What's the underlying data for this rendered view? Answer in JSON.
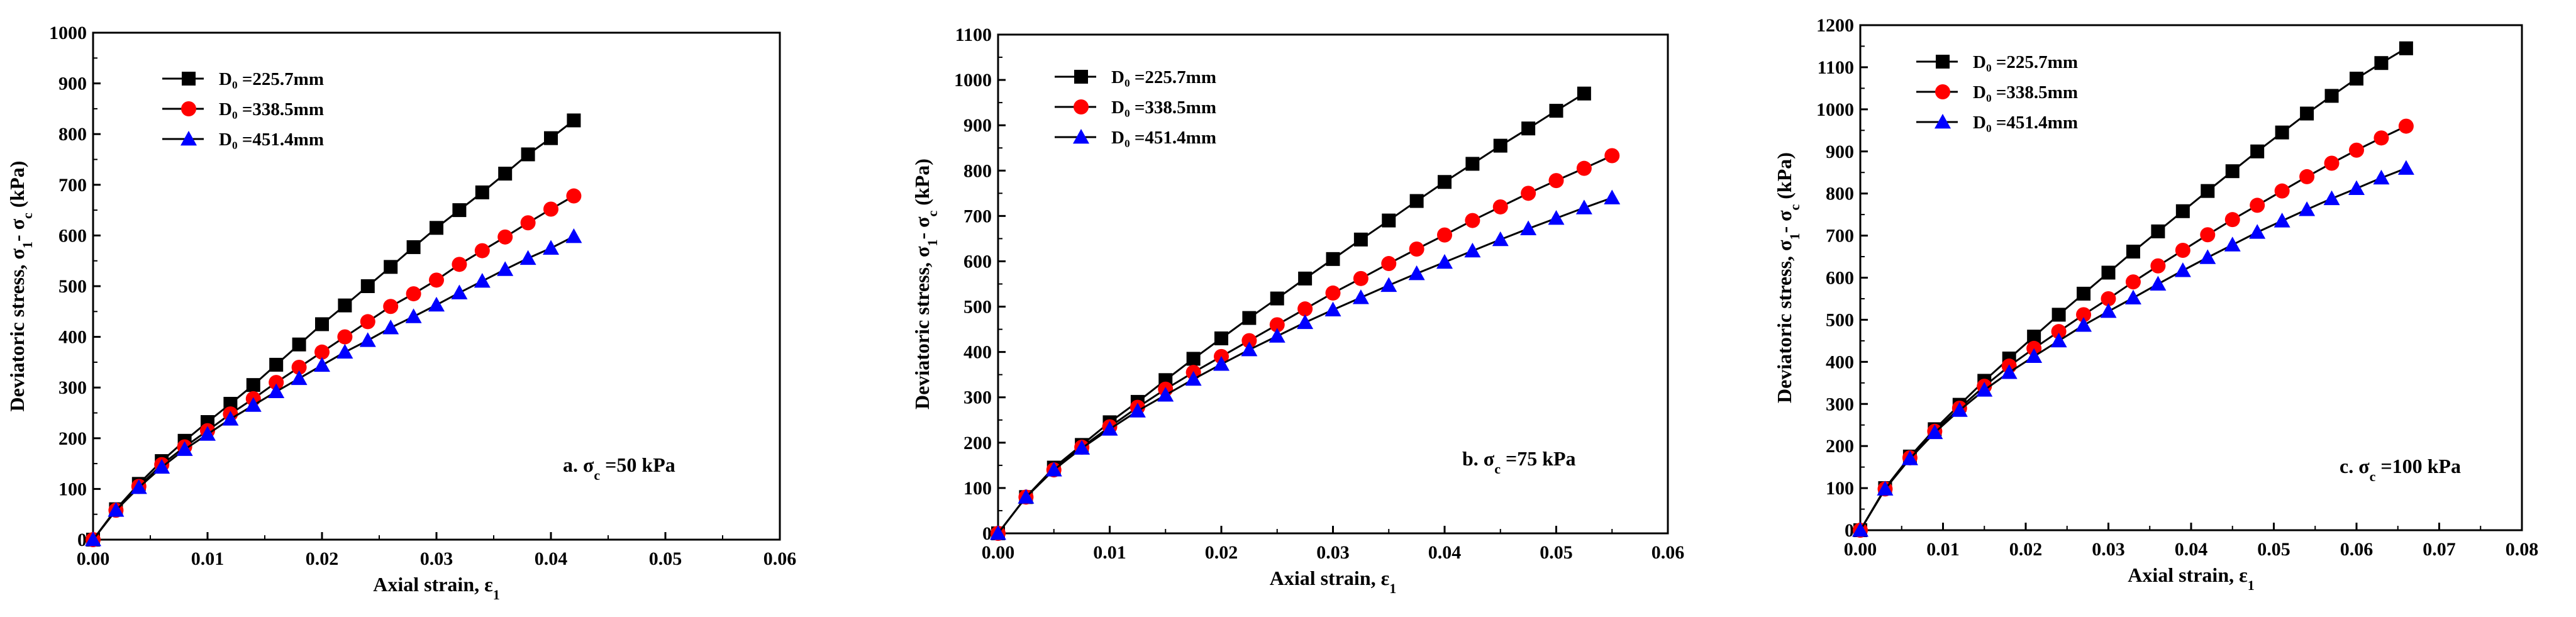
{
  "chart_data": [
    {
      "type": "line",
      "annotation": "a. σ",
      "annotation_sub": "c",
      "annotation_tail": " =50 kPa",
      "xlabel": "Axial strain, ε",
      "xlabel_sub": "1",
      "ylabel": "Deviatoric stress, σ",
      "ylabel_sub1": "1",
      "ylabel_mid": "- σ",
      "ylabel_sub2": "c",
      "ylabel_tail": " (kPa)",
      "xlim": [
        0,
        0.06
      ],
      "ylim": [
        0,
        1000
      ],
      "xticks": [
        "0.00",
        "0.01",
        "0.02",
        "0.03",
        "0.04",
        "0.05",
        "0.06"
      ],
      "yticks": [
        "0",
        "100",
        "200",
        "300",
        "400",
        "500",
        "600",
        "700",
        "800",
        "900",
        "1000"
      ],
      "legend_position": "top-left",
      "series": [
        {
          "name": "D₀ =225.7mm",
          "marker": "square",
          "color": "#000000",
          "x": [
            0,
            0.002,
            0.004,
            0.006,
            0.008,
            0.01,
            0.012,
            0.014,
            0.016,
            0.018,
            0.02,
            0.022,
            0.024,
            0.026,
            0.028,
            0.03,
            0.032,
            0.034,
            0.036,
            0.038,
            0.04,
            0.042
          ],
          "y": [
            0,
            60,
            110,
            155,
            195,
            232,
            268,
            305,
            345,
            385,
            425,
            462,
            500,
            538,
            577,
            615,
            650,
            685,
            722,
            760,
            792,
            827
          ]
        },
        {
          "name": "D₀ =338.5mm",
          "marker": "circle",
          "color": "#ff0000",
          "x": [
            0,
            0.002,
            0.004,
            0.006,
            0.008,
            0.01,
            0.012,
            0.014,
            0.016,
            0.018,
            0.02,
            0.022,
            0.024,
            0.026,
            0.028,
            0.03,
            0.032,
            0.034,
            0.036,
            0.038,
            0.04,
            0.042
          ],
          "y": [
            0,
            58,
            105,
            148,
            183,
            215,
            248,
            278,
            310,
            340,
            370,
            400,
            430,
            460,
            485,
            512,
            543,
            570,
            597,
            625,
            652,
            678
          ]
        },
        {
          "name": "D₀ =451.4mm",
          "marker": "triangle",
          "color": "#0000ff",
          "x": [
            0,
            0.002,
            0.004,
            0.006,
            0.008,
            0.01,
            0.012,
            0.014,
            0.016,
            0.018,
            0.02,
            0.022,
            0.024,
            0.026,
            0.028,
            0.03,
            0.032,
            0.034,
            0.036,
            0.038,
            0.04,
            0.042
          ],
          "y": [
            0,
            58,
            103,
            143,
            178,
            208,
            238,
            265,
            292,
            318,
            344,
            370,
            393,
            418,
            440,
            463,
            487,
            510,
            533,
            555,
            575,
            598
          ]
        }
      ]
    },
    {
      "type": "line",
      "annotation": "b. σ",
      "annotation_sub": "c",
      "annotation_tail": " =75 kPa",
      "xlabel": "Axial strain, ε",
      "xlabel_sub": "1",
      "ylabel": "Deviatoric stress, σ",
      "ylabel_sub1": "1",
      "ylabel_mid": "- σ",
      "ylabel_sub2": "c",
      "ylabel_tail": " (kPa)",
      "xlim": [
        0,
        0.06
      ],
      "ylim": [
        0,
        1100
      ],
      "xticks": [
        "0.00",
        "0.01",
        "0.02",
        "0.03",
        "0.04",
        "0.05",
        "0.06"
      ],
      "yticks": [
        "0",
        "100",
        "200",
        "300",
        "400",
        "500",
        "600",
        "700",
        "800",
        "900",
        "1000",
        "1100"
      ],
      "legend_position": "top-left",
      "series": [
        {
          "name": "D₀ =225.7mm",
          "marker": "square",
          "color": "#000000",
          "x": [
            0,
            0.0025,
            0.005,
            0.0075,
            0.01,
            0.0125,
            0.015,
            0.0175,
            0.02,
            0.0225,
            0.025,
            0.0275,
            0.03,
            0.0325,
            0.035,
            0.0375,
            0.04,
            0.0425,
            0.045,
            0.0475,
            0.05,
            0.0525
          ],
          "y": [
            0,
            80,
            145,
            195,
            245,
            290,
            338,
            385,
            430,
            475,
            518,
            562,
            605,
            648,
            690,
            733,
            775,
            815,
            855,
            893,
            932,
            970
          ]
        },
        {
          "name": "D₀ =338.5mm",
          "marker": "circle",
          "color": "#ff0000",
          "x": [
            0,
            0.0025,
            0.005,
            0.0075,
            0.01,
            0.0125,
            0.015,
            0.0175,
            0.02,
            0.0225,
            0.025,
            0.0275,
            0.03,
            0.0325,
            0.035,
            0.0375,
            0.04,
            0.0425,
            0.045,
            0.0475,
            0.05,
            0.0525,
            0.055
          ],
          "y": [
            0,
            80,
            140,
            190,
            235,
            278,
            318,
            355,
            390,
            425,
            460,
            495,
            530,
            562,
            595,
            627,
            658,
            690,
            720,
            750,
            778,
            805,
            833
          ]
        },
        {
          "name": "D₀ =451.4mm",
          "marker": "triangle",
          "color": "#0000ff",
          "x": [
            0,
            0.0025,
            0.005,
            0.0075,
            0.01,
            0.0125,
            0.015,
            0.0175,
            0.02,
            0.0225,
            0.025,
            0.0275,
            0.03,
            0.0325,
            0.035,
            0.0375,
            0.04,
            0.0425,
            0.045,
            0.0475,
            0.05,
            0.0525,
            0.055
          ],
          "y": [
            0,
            80,
            140,
            188,
            230,
            270,
            305,
            340,
            373,
            405,
            435,
            465,
            493,
            520,
            547,
            573,
            598,
            623,
            648,
            672,
            695,
            718,
            740
          ]
        }
      ]
    },
    {
      "type": "line",
      "annotation": "c. σ",
      "annotation_sub": "c",
      "annotation_tail": " =100 kPa",
      "xlabel": "Axial strain, ε",
      "xlabel_sub": "1",
      "ylabel": "Deviatoric stress, σ",
      "ylabel_sub1": "1",
      "ylabel_mid": "- σ",
      "ylabel_sub2": "c",
      "ylabel_tail": " (kPa)",
      "xlim": [
        0,
        0.08
      ],
      "ylim": [
        0,
        1200
      ],
      "xticks": [
        "0.00",
        "0.01",
        "0.02",
        "0.03",
        "0.04",
        "0.05",
        "0.06",
        "0.07",
        "0.08"
      ],
      "yticks": [
        "0",
        "100",
        "200",
        "300",
        "400",
        "500",
        "600",
        "700",
        "800",
        "900",
        "1000",
        "1100",
        "1200"
      ],
      "legend_position": "top-left",
      "series": [
        {
          "name": "D₀ =225.7mm",
          "marker": "square",
          "color": "#000000",
          "x": [
            0,
            0.003,
            0.006,
            0.009,
            0.012,
            0.015,
            0.018,
            0.021,
            0.024,
            0.027,
            0.03,
            0.033,
            0.036,
            0.039,
            0.042,
            0.045,
            0.048,
            0.051,
            0.054,
            0.057,
            0.06,
            0.063,
            0.066
          ],
          "y": [
            0,
            100,
            175,
            240,
            298,
            355,
            408,
            460,
            512,
            562,
            612,
            662,
            710,
            758,
            806,
            853,
            900,
            945,
            990,
            1032,
            1073,
            1110,
            1145
          ]
        },
        {
          "name": "D₀ =338.5mm",
          "marker": "circle",
          "color": "#ff0000",
          "x": [
            0,
            0.003,
            0.006,
            0.009,
            0.012,
            0.015,
            0.018,
            0.021,
            0.024,
            0.027,
            0.03,
            0.033,
            0.036,
            0.039,
            0.042,
            0.045,
            0.048,
            0.051,
            0.054,
            0.057,
            0.06,
            0.063,
            0.066
          ],
          "y": [
            0,
            98,
            172,
            235,
            290,
            342,
            390,
            432,
            472,
            512,
            550,
            590,
            628,
            665,
            702,
            738,
            772,
            806,
            840,
            872,
            903,
            932,
            960
          ]
        },
        {
          "name": "D₀ =451.4mm",
          "marker": "triangle",
          "color": "#0000ff",
          "x": [
            0,
            0.003,
            0.006,
            0.009,
            0.012,
            0.015,
            0.018,
            0.021,
            0.024,
            0.027,
            0.03,
            0.033,
            0.036,
            0.039,
            0.042,
            0.045,
            0.048,
            0.051,
            0.054,
            0.057,
            0.06,
            0.063,
            0.066
          ],
          "y": [
            0,
            98,
            170,
            232,
            285,
            333,
            375,
            413,
            450,
            487,
            520,
            552,
            585,
            617,
            648,
            678,
            708,
            735,
            762,
            788,
            812,
            837,
            860
          ]
        }
      ]
    }
  ]
}
